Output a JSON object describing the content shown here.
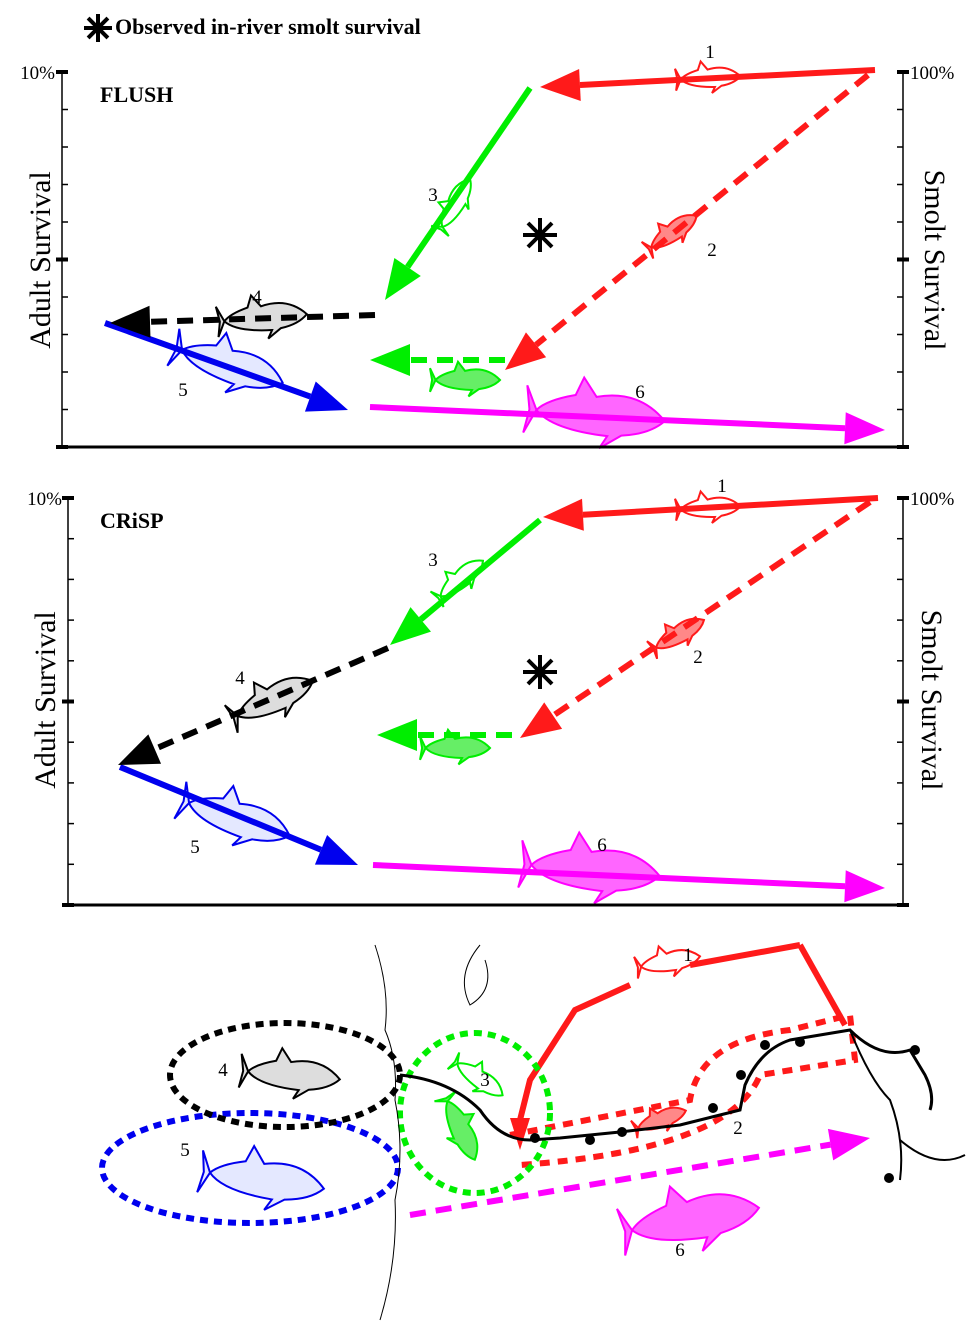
{
  "legend": "Observed in-river smolt survival",
  "panels": [
    {
      "label": "FLUSH",
      "left_axis": {
        "top_label": "10%",
        "title": "Adult Survival"
      },
      "right_axis": {
        "top_label": "100%",
        "title": "Smolt Survival"
      },
      "stages": [
        "1",
        "2",
        "3",
        "4",
        "5",
        "6"
      ]
    },
    {
      "label": "CRiSP",
      "left_axis": {
        "top_label": "10%",
        "title": "Adult Survival"
      },
      "right_axis": {
        "top_label": "100%",
        "title": "Smolt Survival"
      },
      "stages": [
        "1",
        "2",
        "3",
        "4",
        "5",
        "6"
      ]
    }
  ],
  "map": {
    "stages": [
      "1",
      "2",
      "3",
      "4",
      "5",
      "6"
    ]
  }
}
